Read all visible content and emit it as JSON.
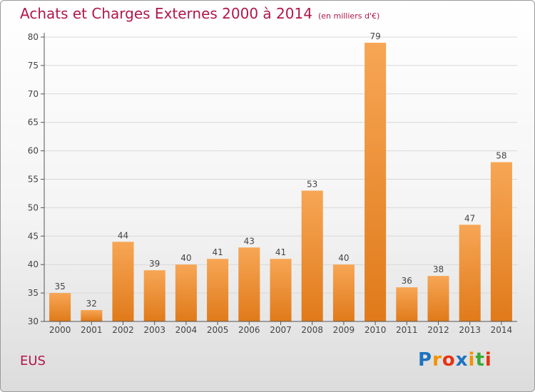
{
  "header": {
    "title": "Achats et Charges Externes 2000 à 2014",
    "subtitle": "(en milliers d'€)"
  },
  "footer": {
    "commune": "EUS"
  },
  "logo": {
    "text": "Proxiti",
    "letters": [
      "P",
      "r",
      "o",
      "x",
      "i",
      "t",
      "i"
    ],
    "colors": [
      "#1e73be",
      "#f39200",
      "#e63312",
      "#1e73be",
      "#f39200",
      "#3aaa35",
      "#e63312"
    ]
  },
  "colors": {
    "bar_light": "#f7a655",
    "bar_dark": "#e07a1a",
    "title": "#b0174a",
    "grid": "#d8d8d8"
  },
  "chart_data": {
    "type": "bar",
    "title": "Achats et Charges Externes 2000 à 2014",
    "subtitle": "(en milliers d'€)",
    "categories": [
      "2000",
      "2001",
      "2002",
      "2003",
      "2004",
      "2005",
      "2006",
      "2007",
      "2008",
      "2009",
      "2010",
      "2011",
      "2012",
      "2013",
      "2014"
    ],
    "values": [
      35,
      32,
      44,
      39,
      40,
      41,
      43,
      41,
      53,
      40,
      79,
      36,
      38,
      47,
      58
    ],
    "ylim": [
      30,
      80
    ],
    "yticks": [
      30,
      35,
      40,
      45,
      50,
      55,
      60,
      65,
      70,
      75,
      80
    ],
    "grid": true,
    "legend": "none"
  }
}
